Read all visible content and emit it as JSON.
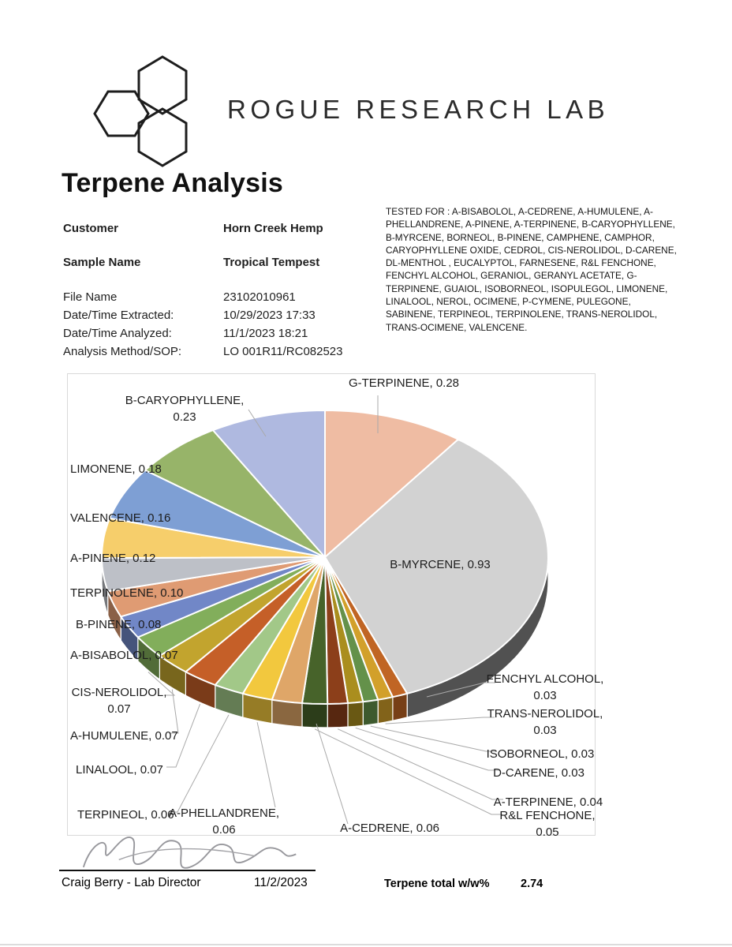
{
  "header": {
    "logo_text": "ROGUE RESEARCH LAB"
  },
  "title": "Terpene Analysis",
  "info": {
    "rows": [
      {
        "label": "Customer",
        "value": "Horn Creek Hemp",
        "bold": true
      },
      {
        "label": "Sample Name",
        "value": "Tropical Tempest",
        "bold": true
      },
      {
        "label": "File Name",
        "value": "23102010961",
        "bold": false
      },
      {
        "label": "Date/Time Extracted:",
        "value": "10/29/2023 17:33",
        "bold": false
      },
      {
        "label": "Date/Time  Analyzed:",
        "value": "11/1/2023 18:21",
        "bold": false
      },
      {
        "label": "Analysis Method/SOP:",
        "value": "LO 001R11/RC082523",
        "bold": false
      }
    ]
  },
  "tested_for": "TESTED FOR : A-BISABOLOL, A-CEDRENE, A-HUMULENE, A-PHELLANDRENE,  A-PINENE, A-TERPINENE, B-CARYOPHYLLENE, B-MYRCENE, BORNEOL, B-PINENE, CAMPHENE, CAMPHOR, CARYOPHYLLENE OXIDE, CEDROL, CIS-NEROLIDOL,  D-CARENE, DL-MENTHOL , EUCALYPTOL, FARNESENE, R&L FENCHONE, FENCHYL ALCOHOL, GERANIOL, GERANYL ACETATE, G-TERPINENE, GUAIOL, ISOBORNEOL, ISOPULEGOL,  LIMONENE, LINALOOL, NEROL, OCIMENE, P-CYMENE, PULEGONE, SABINENE, TERPINEOL, TERPINOLENE, TRANS-NEROLIDOL, TRANS-OCIMENE, VALENCENE.",
  "chart_data": {
    "type": "pie",
    "style": "pie-3d",
    "title": "",
    "unit": "w/w%",
    "start_angle_deg": 0,
    "direction": "clockwise",
    "legend_position": "none",
    "data_label_format": "NAME, value",
    "total_shown": 2.74,
    "slices": [
      {
        "label": "G-TERPINENE",
        "value": 0.28,
        "color": "#EFBCA3"
      },
      {
        "label": "B-MYRCENE",
        "value": 0.93,
        "color": "#D2D2D2",
        "side_color": "#515151"
      },
      {
        "label": "FENCHYL ALCOHOL",
        "value": 0.03,
        "color": "#C06524"
      },
      {
        "label": "TRANS-NEROLIDOL",
        "value": 0.03,
        "color": "#D2A02A"
      },
      {
        "label": "ISOBORNEOL",
        "value": 0.03,
        "color": "#64914A"
      },
      {
        "label": "D-CARENE",
        "value": 0.03,
        "color": "#AA8E1E"
      },
      {
        "label": "A-TERPINENE",
        "value": 0.04,
        "color": "#8C3F1A"
      },
      {
        "label": "R&L FENCHONE",
        "value": 0.05,
        "color": "#47632A"
      },
      {
        "label": "A-CEDRENE",
        "value": 0.06,
        "color": "#DFA668"
      },
      {
        "label": "A-PHELLANDRENE",
        "value": 0.06,
        "color": "#F2C83E"
      },
      {
        "label": "TERPINEOL",
        "value": 0.06,
        "color": "#A2C888"
      },
      {
        "label": "LINALOOL",
        "value": 0.07,
        "color": "#C55F28"
      },
      {
        "label": "A-HUMULENE",
        "value": 0.07,
        "color": "#C2A42E"
      },
      {
        "label": "CIS-NEROLIDOL",
        "value": 0.07,
        "color": "#82AE5B"
      },
      {
        "label": "A-BISABOLOL",
        "value": 0.07,
        "color": "#7187C7"
      },
      {
        "label": "B-PINENE",
        "value": 0.08,
        "color": "#DF9B73"
      },
      {
        "label": "TERPINOLENE",
        "value": 0.1,
        "color": "#BDC0C7"
      },
      {
        "label": "A-PINENE",
        "value": 0.12,
        "color": "#F6CE6B"
      },
      {
        "label": "VALENCENE",
        "value": 0.16,
        "color": "#7E9FD4"
      },
      {
        "label": "LIMONENE",
        "value": 0.18,
        "color": "#97B469"
      },
      {
        "label": "B-CARYOPHYLLENE",
        "value": 0.23,
        "color": "#AFB9E0"
      }
    ]
  },
  "footer": {
    "signer": "Craig Berry - Lab Director",
    "sign_date": "11/2/2023",
    "total_label": "Terpene total w/w%",
    "total_value": "2.74"
  }
}
